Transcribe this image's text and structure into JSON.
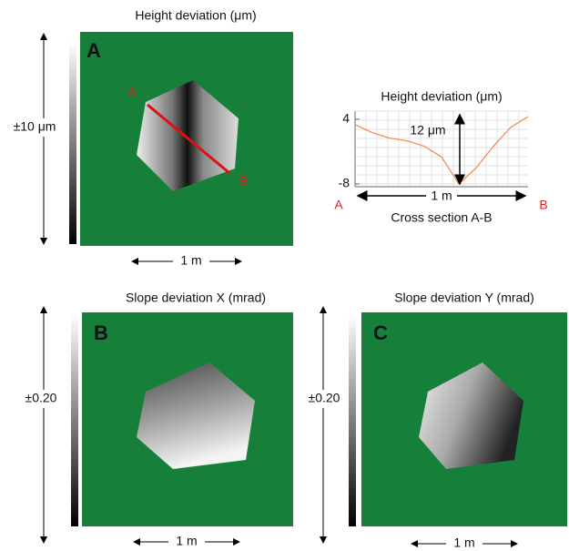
{
  "panels": [
    {
      "letter": "A",
      "title": "Height deviation (μm)",
      "scale_label": "±10 μm",
      "length_label": "1 m",
      "point_labels": [
        "A",
        "B"
      ]
    },
    {
      "letter": "B",
      "title": "Slope deviation X (mrad)",
      "scale_label": "±0.20",
      "length_label": "1 m"
    },
    {
      "letter": "C",
      "title": "Slope deviation Y (mrad)",
      "scale_label": "±0.20",
      "length_label": "1 m"
    }
  ],
  "chart_data": {
    "type": "line",
    "title": "Height deviation (μm)",
    "x": [
      0,
      0.1,
      0.2,
      0.3,
      0.4,
      0.5,
      0.6,
      0.7,
      0.8,
      0.9,
      1.0
    ],
    "series": [
      {
        "color": "#f0905a",
        "values": [
          3,
          1.5,
          0.5,
          0,
          -1,
          -3,
          -8,
          -5,
          -1,
          2.5,
          4.5
        ]
      }
    ],
    "xlim": [
      0,
      1
    ],
    "ylim": [
      -8.5,
      5.5
    ],
    "yticks": [
      4,
      -8
    ],
    "annotations": {
      "peak_to_valley": "12 μm",
      "length": "1 m",
      "start": "A",
      "end": "B",
      "caption": "Cross section A-B"
    }
  }
}
